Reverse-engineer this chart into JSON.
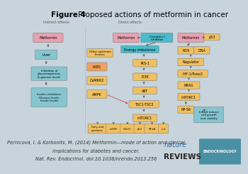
{
  "title_bold": "Figure 4",
  "title_normal": " Proposed actions of metformin in cancer",
  "citation_line1": "Pernicova, I. & Korbonits, M. (2014) Metformin—mode of action and clinical",
  "citation_line2": "implications for diabetes and cancer.",
  "citation_line3": "Nat. Rev. Endocrinol. doi:10.1038/nrendo.2013.256",
  "bg_color": "#c8d4dc",
  "panel_bg": "#f0f0f0",
  "title_fontsize": 7.5,
  "citation_fontsize": 4.8,
  "nature_color": "#2e6da4",
  "endocrinology_bg": "#4a90a4",
  "endocrinology_text": "ENDOCRINOLOGY"
}
